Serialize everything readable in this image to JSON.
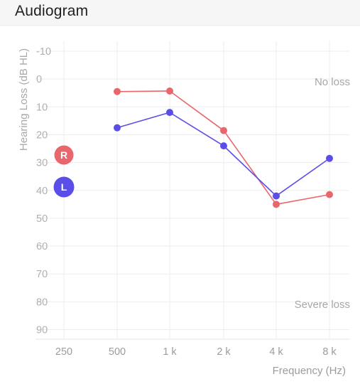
{
  "header": {
    "title": "Audiogram"
  },
  "chart_data": {
    "type": "line",
    "title": "",
    "xlabel": "Frequency (Hz)",
    "ylabel": "Hearing Loss (dB HL)",
    "categories": [
      "250",
      "500",
      "1 k",
      "2 k",
      "4 k",
      "8 k"
    ],
    "ylim": [
      -10,
      90
    ],
    "y_inverted": true,
    "y_ticks": [
      -10,
      0,
      10,
      20,
      30,
      40,
      50,
      60,
      70,
      80,
      90
    ],
    "grid": true,
    "annotations": [
      {
        "text": "No loss"
      },
      {
        "text": "Severe loss"
      }
    ],
    "series": [
      {
        "name": "R",
        "color": "#e8666c",
        "values": [
          null,
          4.5,
          4.3,
          18.5,
          45,
          41.5
        ]
      },
      {
        "name": "L",
        "color": "#5b4ee8",
        "values": [
          null,
          17.5,
          12,
          24,
          42,
          28.5
        ]
      }
    ]
  }
}
